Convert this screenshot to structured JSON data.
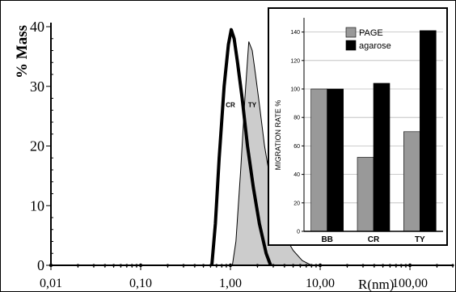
{
  "chart_data": [
    {
      "type": "area",
      "ylabel": "% Mass",
      "xlabel": "R(nm)",
      "x_scale": "log",
      "xlim": [
        0.01,
        300
      ],
      "ylim": [
        0,
        40
      ],
      "yticks": [
        0,
        10,
        20,
        30,
        40
      ],
      "ytick_labels": [
        "0",
        "10",
        "20",
        "30",
        "40"
      ],
      "xticks": [
        0.01,
        0.1,
        1,
        10,
        100
      ],
      "xtick_labels": [
        "0,01",
        "0,10",
        "1,00",
        "10,00",
        "100,00"
      ],
      "series": [
        {
          "name": "CR",
          "style": "thick-black-line",
          "color": "#000000",
          "x": [
            0.62,
            0.68,
            0.75,
            0.85,
            0.95,
            1.02,
            1.1,
            1.2,
            1.35,
            1.55,
            1.8,
            2.1,
            2.5,
            2.8
          ],
          "y": [
            0,
            7,
            18,
            30,
            37,
            39.5,
            38,
            34,
            28,
            20,
            13,
            7,
            2,
            0
          ]
        },
        {
          "name": "TY",
          "style": "gray-filled-area",
          "color": "#cccccc",
          "x": [
            1.05,
            1.15,
            1.3,
            1.45,
            1.6,
            1.75,
            1.9,
            2.1,
            2.4,
            2.8,
            3.3,
            4.0,
            5.0,
            6.3,
            8.0
          ],
          "y": [
            0,
            4,
            16,
            28,
            37.5,
            36,
            32,
            27,
            20,
            14,
            9,
            5,
            2.5,
            0.8,
            0
          ]
        }
      ]
    },
    {
      "type": "bar",
      "ylabel": "MIGRATION RATE %",
      "categories": [
        "BB",
        "CR",
        "TY"
      ],
      "ylim": [
        0,
        150
      ],
      "yticks": [
        0,
        20,
        40,
        60,
        80,
        100,
        120,
        140
      ],
      "ytick_labels": [
        "0",
        "20",
        "40",
        "60",
        "80",
        "100",
        "120",
        "140"
      ],
      "legend_position": "top-right",
      "series": [
        {
          "name": "PAGE",
          "color": "#999999",
          "values": [
            100,
            52,
            70
          ]
        },
        {
          "name": "agarose",
          "color": "#000000",
          "values": [
            100,
            104,
            141
          ]
        }
      ]
    }
  ]
}
